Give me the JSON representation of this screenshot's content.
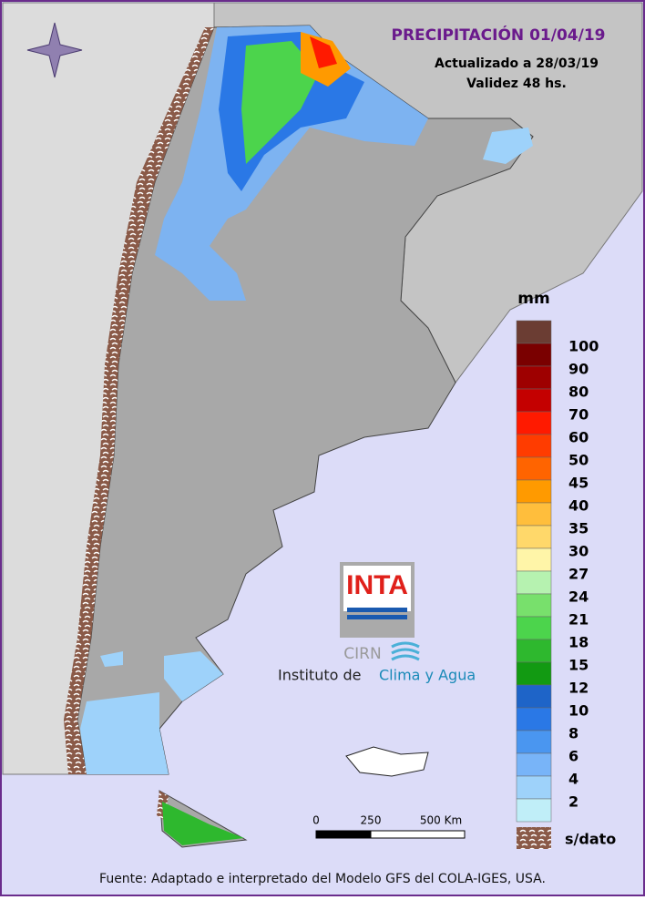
{
  "header": {
    "title": "PRECIPITACIÓN 01/04/19",
    "updated": "Actualizado a 28/03/19",
    "validity": "Validez 48 hs."
  },
  "legend": {
    "unit": "mm",
    "top_color": "#6b3d33",
    "items": [
      {
        "label": "100",
        "color": "#7a0000"
      },
      {
        "label": "90",
        "color": "#9e0000"
      },
      {
        "label": "80",
        "color": "#c40000"
      },
      {
        "label": "70",
        "color": "#ff1a00"
      },
      {
        "label": "60",
        "color": "#ff3c00"
      },
      {
        "label": "50",
        "color": "#ff6400"
      },
      {
        "label": "45",
        "color": "#ff9a00"
      },
      {
        "label": "40",
        "color": "#ffbe3c"
      },
      {
        "label": "35",
        "color": "#ffd86a"
      },
      {
        "label": "30",
        "color": "#fff5a8"
      },
      {
        "label": "27",
        "color": "#b6f2b0"
      },
      {
        "label": "24",
        "color": "#78e06c"
      },
      {
        "label": "21",
        "color": "#4cd44c"
      },
      {
        "label": "18",
        "color": "#2eb82e"
      },
      {
        "label": "15",
        "color": "#129a12"
      },
      {
        "label": "12",
        "color": "#1e64c8"
      },
      {
        "label": "10",
        "color": "#2a78e6"
      },
      {
        "label": "8",
        "color": "#4a96f0"
      },
      {
        "label": "6",
        "color": "#78b4f8"
      },
      {
        "label": "4",
        "color": "#9ed2fa"
      },
      {
        "label": "2",
        "color": "#c0eef8"
      }
    ],
    "no_data": "s/dato"
  },
  "scale_bar": {
    "labels": [
      "0",
      "250",
      "500 Km"
    ]
  },
  "logo": {
    "brand": "INTA",
    "center": "CIRN",
    "institute_prefix": "Instituto de",
    "institute_name": "Clima y Agua"
  },
  "footer": "Fuente: Adaptado e interpretado del Modelo GFS del COLA-IGES, USA."
}
